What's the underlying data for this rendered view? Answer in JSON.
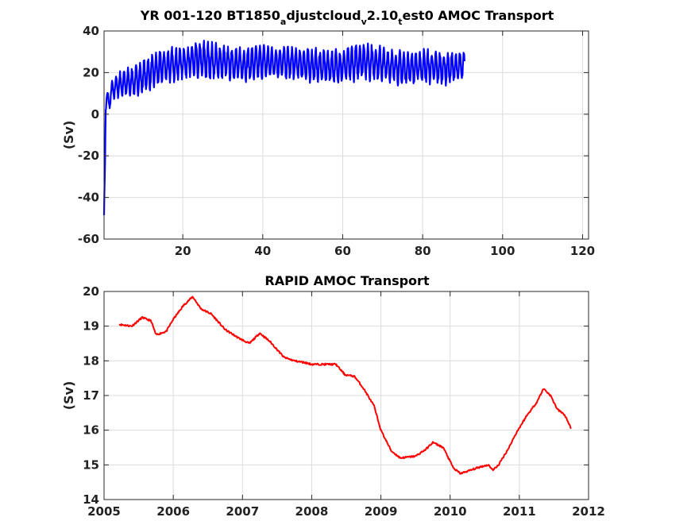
{
  "chart_data": [
    {
      "type": "line",
      "title": {
        "prefix": "YR 001-120 BT1850",
        "sub1": "a",
        "mid1": "djustcloud",
        "sub2": "v",
        "mid2": "2.10",
        "sub3": "t",
        "suffix": "est0 AMOC Transport"
      },
      "xlabel": "",
      "ylabel": "(Sv)",
      "xlim": [
        0.3,
        121.5
      ],
      "ylim": [
        -60,
        40
      ],
      "xticks": [
        20,
        40,
        60,
        80,
        100,
        120
      ],
      "yticks": [
        -60,
        -40,
        -20,
        0,
        20,
        40
      ],
      "xtick_labels": [
        "20",
        "40",
        "60",
        "80",
        "100",
        "120"
      ],
      "ytick_labels": [
        "-60",
        "-40",
        "-20",
        "0",
        "20",
        "40"
      ],
      "grid": true,
      "color": "#0000ff",
      "series": [
        {
          "x": [
            0.3,
            0.5,
            0.7,
            1.0,
            1.5,
            2,
            3,
            4,
            5,
            6,
            8,
            10,
            12,
            15,
            18,
            20,
            25,
            30,
            35,
            40,
            45,
            50,
            55,
            60,
            65,
            70,
            75,
            80,
            85,
            90.5
          ],
          "mean": [
            -50,
            -30,
            5,
            10,
            4,
            10,
            13,
            14,
            15,
            15,
            16,
            18,
            20,
            23,
            24,
            25,
            26,
            25,
            24,
            25,
            25,
            24,
            23,
            23,
            26,
            24,
            22,
            23,
            22,
            23
          ],
          "amplitude": [
            2,
            5,
            4,
            3,
            3,
            4,
            5,
            5,
            6,
            6,
            6,
            7,
            7,
            7,
            7,
            7,
            8,
            7,
            7,
            7,
            7,
            7,
            7,
            7,
            8,
            7,
            7,
            7,
            7,
            6
          ]
        }
      ]
    },
    {
      "type": "line",
      "title": "RAPID AMOC Transport",
      "xlabel": "",
      "ylabel": "(Sv)",
      "xlim": [
        2005,
        2012
      ],
      "ylim": [
        14,
        20
      ],
      "xticks": [
        2005,
        2006,
        2007,
        2008,
        2009,
        2010,
        2011,
        2012
      ],
      "yticks": [
        14,
        15,
        16,
        17,
        18,
        19,
        20
      ],
      "xtick_labels": [
        "2005",
        "2006",
        "2007",
        "2008",
        "2009",
        "2010",
        "2011",
        "2012"
      ],
      "ytick_labels": [
        "14",
        "15",
        "16",
        "17",
        "18",
        "19",
        "20"
      ],
      "grid": true,
      "color": "#ff0000",
      "series": [
        {
          "x": [
            2005.22,
            2005.4,
            2005.55,
            2005.68,
            2005.75,
            2005.9,
            2006.0,
            2006.15,
            2006.28,
            2006.4,
            2006.55,
            2006.75,
            2006.95,
            2007.1,
            2007.25,
            2007.4,
            2007.6,
            2007.75,
            2007.9,
            2008.0,
            2008.15,
            2008.35,
            2008.48,
            2008.62,
            2008.75,
            2008.9,
            2009.0,
            2009.15,
            2009.28,
            2009.5,
            2009.65,
            2009.75,
            2009.9,
            2010.05,
            2010.15,
            2010.3,
            2010.45,
            2010.55,
            2010.62,
            2010.7,
            2010.85,
            2010.95,
            2011.1,
            2011.25,
            2011.35,
            2011.45,
            2011.55,
            2011.65,
            2011.75
          ],
          "y": [
            19.05,
            19.0,
            19.25,
            19.15,
            18.75,
            18.85,
            19.2,
            19.6,
            19.85,
            19.5,
            19.35,
            18.9,
            18.65,
            18.5,
            18.8,
            18.55,
            18.1,
            18.0,
            17.95,
            17.9,
            17.9,
            17.9,
            17.6,
            17.55,
            17.2,
            16.7,
            16.0,
            15.4,
            15.2,
            15.25,
            15.45,
            15.65,
            15.5,
            14.9,
            14.75,
            14.85,
            14.95,
            15.0,
            14.85,
            15.0,
            15.5,
            15.9,
            16.4,
            16.8,
            17.2,
            17.0,
            16.6,
            16.45,
            16.05
          ]
        }
      ]
    }
  ]
}
